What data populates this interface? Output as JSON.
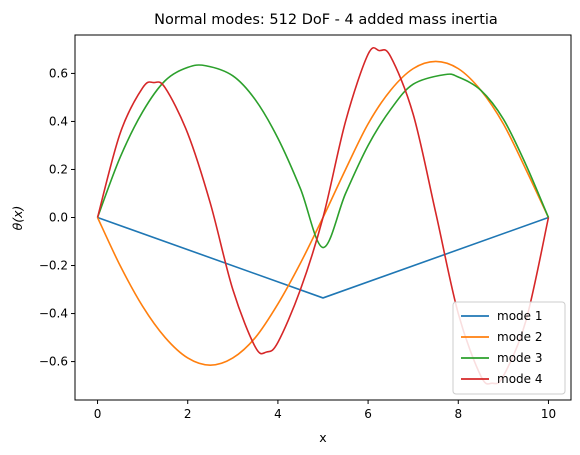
{
  "chart_data": {
    "type": "line",
    "title": "Normal modes: 512 DoF - 4 added mass inertia",
    "xlabel": "x",
    "ylabel": "θ(x)",
    "xlim": [
      -0.5,
      10.5
    ],
    "ylim": [
      -0.76,
      0.76
    ],
    "xticks": [
      0,
      2,
      4,
      6,
      8,
      10
    ],
    "yticks": [
      -0.6,
      -0.4,
      -0.2,
      0.0,
      0.2,
      0.4,
      0.6
    ],
    "xtick_labels": [
      "0",
      "2",
      "4",
      "6",
      "8",
      "10"
    ],
    "ytick_labels": [
      "−0.6",
      "−0.4",
      "−0.2",
      "0.0",
      "0.2",
      "0.4",
      "0.6"
    ],
    "grid": false,
    "legend_position": "lower-right",
    "series": [
      {
        "name": "mode 1",
        "color": "#1f77b4",
        "x": [
          0,
          5,
          10
        ],
        "y": [
          0,
          -0.335,
          0
        ]
      },
      {
        "name": "mode 2",
        "color": "#ff7f0e",
        "x": [
          0,
          0.5,
          1,
          1.5,
          2,
          2.5,
          3,
          3.5,
          4,
          4.5,
          5,
          5.5,
          6,
          6.5,
          7,
          7.5,
          8,
          8.5,
          9,
          9.5,
          10
        ],
        "y": [
          0,
          -0.2,
          -0.37,
          -0.5,
          -0.585,
          -0.615,
          -0.585,
          -0.5,
          -0.36,
          -0.19,
          0,
          0.2,
          0.39,
          0.53,
          0.62,
          0.65,
          0.62,
          0.53,
          0.39,
          0.2,
          0
        ]
      },
      {
        "name": "mode 3",
        "color": "#2ca02c",
        "x": [
          0,
          0.5,
          1,
          1.5,
          2,
          2.4,
          3,
          3.5,
          4,
          4.5,
          5,
          5.5,
          6,
          6.5,
          7,
          7.7,
          8,
          8.5,
          9,
          9.5,
          10
        ],
        "y": [
          0,
          0.25,
          0.44,
          0.57,
          0.625,
          0.632,
          0.59,
          0.49,
          0.33,
          0.12,
          -0.125,
          0.1,
          0.3,
          0.45,
          0.555,
          0.595,
          0.585,
          0.53,
          0.41,
          0.22,
          0
        ]
      },
      {
        "name": "mode 4",
        "color": "#d62728",
        "x": [
          0,
          0.5,
          1,
          1.25,
          1.5,
          2,
          2.5,
          3,
          3.5,
          3.75,
          4,
          4.5,
          5,
          5.5,
          6,
          6.25,
          6.5,
          7,
          7.5,
          8,
          8.5,
          8.75,
          9,
          9.5,
          10
        ],
        "y": [
          0,
          0.35,
          0.54,
          0.562,
          0.54,
          0.35,
          0.06,
          -0.3,
          -0.54,
          -0.56,
          -0.52,
          -0.3,
          0.0,
          0.4,
          0.68,
          0.695,
          0.67,
          0.43,
          0.02,
          -0.4,
          -0.66,
          -0.69,
          -0.66,
          -0.43,
          0
        ]
      }
    ]
  }
}
